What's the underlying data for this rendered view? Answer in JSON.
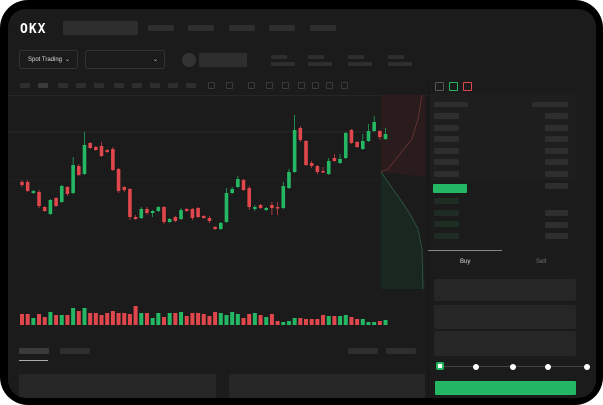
{
  "brand": {
    "logo": "OKX"
  },
  "toolbar": {
    "market_type": "Spot Trading",
    "pair_chevron": "chevron-down-icon"
  },
  "trade": {
    "tabs": [
      {
        "label": "Buy",
        "active": true
      },
      {
        "label": "Sell",
        "active": false
      }
    ],
    "slider_percent": 0,
    "slider_stops": 5
  },
  "colors": {
    "up": "#25b864",
    "down": "#e0474c",
    "bg": "#1b1b1b",
    "accent": "#25b864"
  },
  "chart_data": {
    "type": "candlestick",
    "candles": [
      [
        118,
        115,
        120,
        113
      ],
      [
        118,
        109,
        120,
        108
      ],
      [
        107,
        109,
        110,
        106
      ],
      [
        108,
        94,
        110,
        92
      ],
      [
        93,
        89,
        94,
        88
      ],
      [
        86,
        100,
        101,
        85
      ],
      [
        102,
        94,
        103,
        93
      ],
      [
        98,
        114,
        115,
        97
      ],
      [
        113,
        106,
        114,
        104
      ],
      [
        107,
        135,
        143,
        106
      ],
      [
        134,
        125,
        136,
        124
      ],
      [
        126,
        155,
        168,
        125
      ],
      [
        157,
        152,
        158,
        151
      ],
      [
        153,
        150,
        154,
        149
      ],
      [
        154,
        144,
        158,
        143
      ],
      [
        150,
        148,
        151,
        147
      ],
      [
        151,
        130,
        153,
        129
      ],
      [
        131,
        109,
        132,
        107
      ],
      [
        113,
        110,
        114,
        108
      ],
      [
        111,
        83,
        112,
        80
      ],
      [
        83,
        81,
        85,
        80
      ],
      [
        82,
        91,
        93,
        81
      ],
      [
        91,
        87,
        93,
        85
      ],
      [
        87,
        89,
        90,
        83
      ],
      [
        89,
        93,
        94,
        88
      ],
      [
        93,
        78,
        94,
        76
      ],
      [
        78,
        81,
        82,
        77
      ],
      [
        83,
        79,
        84,
        78
      ],
      [
        81,
        90,
        92,
        80
      ],
      [
        91,
        89,
        92,
        88
      ],
      [
        91,
        82,
        92,
        80
      ],
      [
        92,
        83,
        93,
        82
      ],
      [
        84,
        82,
        85,
        81
      ],
      [
        82,
        79,
        84,
        77
      ],
      [
        73,
        71,
        74,
        70
      ],
      [
        71,
        77,
        78,
        70
      ],
      [
        78,
        107,
        112,
        77
      ],
      [
        107,
        111,
        113,
        106
      ],
      [
        113,
        121,
        124,
        112
      ],
      [
        120,
        110,
        121,
        109
      ],
      [
        112,
        93,
        114,
        90
      ],
      [
        91,
        93,
        95,
        89
      ],
      [
        95,
        92,
        96,
        91
      ],
      [
        90,
        92,
        93,
        89
      ],
      [
        95,
        92,
        98,
        85
      ],
      [
        93,
        92,
        98,
        85
      ],
      [
        92,
        114,
        118,
        91
      ],
      [
        112,
        128,
        131,
        111
      ],
      [
        128,
        170,
        185,
        127
      ],
      [
        172,
        160,
        174,
        158
      ],
      [
        159,
        135,
        160,
        134
      ],
      [
        137,
        134,
        139,
        132
      ],
      [
        134,
        128,
        135,
        126
      ],
      [
        129,
        128,
        133,
        127
      ],
      [
        126,
        139,
        142,
        125
      ],
      [
        142,
        139,
        146,
        138
      ],
      [
        137,
        141,
        146,
        136
      ],
      [
        142,
        167,
        168,
        141
      ],
      [
        170,
        157,
        171,
        156
      ],
      [
        158,
        153,
        159,
        152
      ],
      [
        151,
        159,
        166,
        150
      ],
      [
        159,
        169,
        176,
        158
      ],
      [
        169,
        178,
        184,
        168
      ],
      [
        169,
        163,
        170,
        160
      ],
      [
        161,
        166,
        172,
        160
      ]
    ],
    "volume": [
      11,
      11,
      7,
      11,
      8,
      13,
      10,
      10,
      10,
      17,
      14,
      17,
      12,
      12,
      10,
      12,
      14,
      12,
      12,
      11,
      19,
      12,
      12,
      7,
      12,
      8,
      12,
      12,
      13,
      9,
      12,
      12,
      11,
      9,
      13,
      12,
      10,
      13,
      11,
      7,
      11,
      12,
      10,
      8,
      11,
      4,
      3,
      4,
      7,
      7,
      6,
      6,
      6,
      10,
      9,
      9,
      9,
      10,
      8,
      6,
      6,
      3,
      3,
      4,
      5
    ]
  }
}
